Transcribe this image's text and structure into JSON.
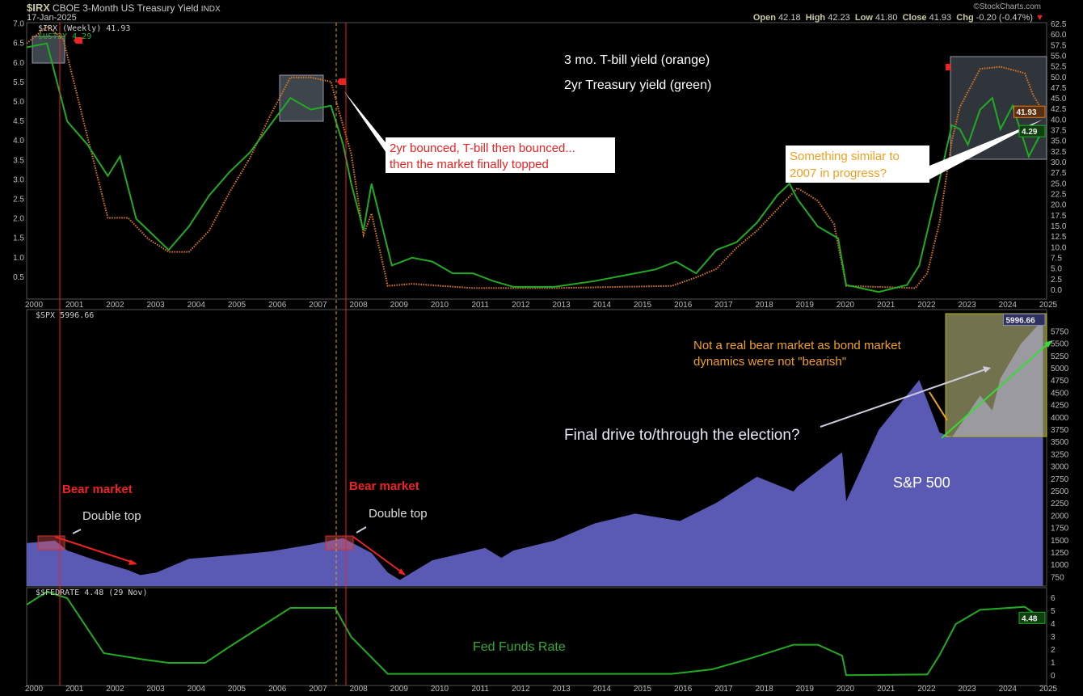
{
  "header": {
    "symbol": "$IRX",
    "name": "CBOE 3-Month US Treasury Yield",
    "exchange": "INDX",
    "date": "17-Jan-2025",
    "watermark": "©StockCharts.com",
    "open_label": "Open",
    "open": "42.18",
    "high_label": "High",
    "high": "42.23",
    "low_label": "Low",
    "low": "41.80",
    "close_label": "Close",
    "close": "41.93",
    "chg_label": "Chg",
    "chg": "-0.20 (-0.47%)"
  },
  "colors": {
    "irx": "#e07820",
    "us2y": "#22aa22",
    "spx_fill": "#5a5ab4",
    "fedrate": "#22aa22",
    "annotation_red": "#ee2222",
    "annotation_orange": "#f0a020",
    "background": "#000000"
  },
  "chart_data": [
    {
      "type": "line",
      "panel": "top",
      "legend": [
        "$IRX (Weekly) 41.93",
        "$UST2Y 4.29"
      ],
      "yticks_left": [
        "7.0",
        "6.5",
        "6.0",
        "5.5",
        "5.0",
        "4.5",
        "4.0",
        "3.5",
        "3.0",
        "2.5",
        "2.0",
        "1.5",
        "1.0",
        "0.5"
      ],
      "yticks_right": [
        "62.5",
        "60.0",
        "57.5",
        "55.0",
        "52.5",
        "50.0",
        "47.5",
        "45.0",
        "42.5",
        "40.0",
        "37.5",
        "35.0",
        "32.5",
        "30.0",
        "27.5",
        "25.0",
        "22.5",
        "20.0",
        "17.5",
        "15.0",
        "12.5",
        "10.0",
        "7.5",
        "5.0",
        "2.5",
        "0.0"
      ],
      "ylim_left": [
        0,
        7.0
      ],
      "ylim_right": [
        0,
        62.5
      ],
      "xticks": [
        "2000",
        "2001",
        "2002",
        "2003",
        "2004",
        "2005",
        "2006",
        "2007",
        "2008",
        "2009",
        "2010",
        "2011",
        "2012",
        "2013",
        "2014",
        "2015",
        "2016",
        "2017",
        "2018",
        "2019",
        "2020",
        "2021",
        "2022",
        "2023",
        "2024",
        "2025"
      ],
      "series": [
        {
          "name": "$IRX (Weekly)",
          "axis": "right",
          "last": "41.93",
          "style": "dotted",
          "x": [
            2000,
            2000.5,
            2000.9,
            2001.5,
            2002,
            2002.5,
            2003,
            2003.5,
            2004,
            2004.5,
            2005,
            2005.5,
            2006,
            2006.5,
            2007,
            2007.5,
            2007.7,
            2008,
            2008.3,
            2008.5,
            2008.9,
            2009.5,
            2011,
            2013,
            2015.9,
            2016.5,
            2017,
            2017.5,
            2018,
            2018.5,
            2019,
            2019.5,
            2019.9,
            2020.2,
            2021.9,
            2022.2,
            2022.5,
            2022.8,
            2023,
            2023.5,
            2024,
            2024.6,
            2024.8,
            2025.05
          ],
          "y": [
            58,
            62,
            59,
            36,
            17,
            17,
            12,
            9,
            9,
            14,
            23,
            31,
            41,
            50,
            50,
            49,
            42,
            32,
            13,
            18,
            1,
            1.5,
            0.5,
            0.5,
            1,
            3,
            5,
            10,
            14,
            19,
            24,
            21,
            15.5,
            1,
            0.5,
            4,
            16,
            35,
            43,
            52,
            52.5,
            51,
            46,
            41.93
          ]
        },
        {
          "name": "$UST2Y",
          "axis": "left",
          "last": "4.29",
          "style": "solid",
          "x": [
            2000,
            2000.5,
            2001,
            2001.5,
            2002,
            2002.3,
            2002.7,
            2003,
            2003.5,
            2004,
            2004.5,
            2005,
            2005.5,
            2006,
            2006.5,
            2007,
            2007.5,
            2007.8,
            2008,
            2008.3,
            2008.5,
            2009,
            2009.5,
            2010,
            2010.5,
            2011,
            2011.5,
            2012,
            2013,
            2014,
            2015,
            2015.5,
            2016,
            2016.5,
            2017,
            2017.5,
            2018,
            2018.5,
            2018.8,
            2019,
            2019.5,
            2020,
            2020.2,
            2021,
            2021.7,
            2022,
            2022.5,
            2022.8,
            2023,
            2023.2,
            2023.5,
            2023.8,
            2024,
            2024.3,
            2024.7,
            2025.05
          ],
          "y": [
            6.4,
            6.5,
            4.5,
            3.9,
            3.1,
            3.6,
            2.0,
            1.7,
            1.2,
            1.8,
            2.6,
            3.2,
            3.7,
            4.4,
            5.1,
            4.8,
            4.9,
            3.9,
            2.9,
            1.7,
            2.9,
            0.8,
            1.0,
            0.9,
            0.6,
            0.6,
            0.4,
            0.25,
            0.25,
            0.4,
            0.6,
            0.7,
            0.9,
            0.6,
            1.2,
            1.4,
            1.9,
            2.6,
            2.9,
            2.5,
            1.8,
            1.5,
            0.3,
            0.12,
            0.3,
            0.8,
            3.0,
            4.4,
            4.3,
            3.9,
            4.8,
            5.1,
            4.3,
            4.9,
            3.6,
            4.29
          ]
        }
      ],
      "annotations": [
        "3 mo. T-bill yield (orange)",
        "2yr Treasury yield (green)",
        "2yr bounced, T-bill then bounced...",
        "then the market finally topped",
        "Something similar to",
        "2007 in progress?"
      ]
    },
    {
      "type": "area",
      "panel": "middle",
      "legend": [
        "$SPX 5996.66"
      ],
      "last": "5996.66",
      "yticks": [
        "5750",
        "5500",
        "5250",
        "5000",
        "4750",
        "4500",
        "4250",
        "4000",
        "3750",
        "3500",
        "3250",
        "3000",
        "2750",
        "2500",
        "2250",
        "2000",
        "1750",
        "1500",
        "1250",
        "1000",
        "750"
      ],
      "ylim": [
        750,
        6000
      ],
      "series": [
        {
          "name": "$SPX",
          "x": [
            2000,
            2000.7,
            2001,
            2001.7,
            2002.5,
            2002.8,
            2003.2,
            2004,
            2005,
            2006,
            2007,
            2007.8,
            2008.5,
            2008.9,
            2009.2,
            2010,
            2011.3,
            2011.7,
            2012,
            2013,
            2014,
            2015,
            2016.1,
            2017,
            2018,
            2018.9,
            2019,
            2020.1,
            2020.2,
            2021,
            2022,
            2022.5,
            2022.8,
            2023.5,
            2023.8,
            2024,
            2024.5,
            2025.05
          ],
          "y": [
            1450,
            1500,
            1300,
            1100,
            900,
            800,
            850,
            1130,
            1200,
            1280,
            1420,
            1550,
            1250,
            850,
            700,
            1100,
            1350,
            1150,
            1300,
            1500,
            1850,
            2050,
            1900,
            2270,
            2800,
            2500,
            2600,
            3300,
            2300,
            3750,
            4770,
            3700,
            3600,
            4450,
            4150,
            4800,
            5500,
            5997
          ]
        }
      ],
      "annotations": [
        "Bear market",
        "Double top",
        "Bear market",
        "Double top",
        "Not a real bear market as bond market",
        "dynamics were not \"bearish\"",
        "Final drive to/through the election?",
        "S&P 500"
      ]
    },
    {
      "type": "line",
      "panel": "bottom",
      "legend": [
        "$$FEDRATE 4.48 (29 Nov)"
      ],
      "last": "4.48",
      "yticks": [
        "6",
        "5",
        "4",
        "3",
        "2",
        "1",
        "0"
      ],
      "ylim": [
        0,
        6.5
      ],
      "series": [
        {
          "name": "$$FEDRATE",
          "x": [
            2000,
            2000.5,
            2001,
            2001.9,
            2002.9,
            2003.5,
            2004.4,
            2005,
            2006,
            2006.5,
            2007.6,
            2008,
            2008.9,
            2015.9,
            2016.9,
            2017.9,
            2018.9,
            2019.5,
            2020.1,
            2020.2,
            2022.2,
            2022.5,
            2022.9,
            2023.5,
            2024.6,
            2025.0
          ],
          "y": [
            5.5,
            6.5,
            6.0,
            1.75,
            1.25,
            1.0,
            1.0,
            2.25,
            4.25,
            5.25,
            5.25,
            3.0,
            0.15,
            0.15,
            0.5,
            1.4,
            2.4,
            2.4,
            1.55,
            0.05,
            0.1,
            1.6,
            4.0,
            5.1,
            5.33,
            4.48
          ]
        }
      ],
      "annotations": [
        "Fed Funds Rate"
      ]
    }
  ]
}
